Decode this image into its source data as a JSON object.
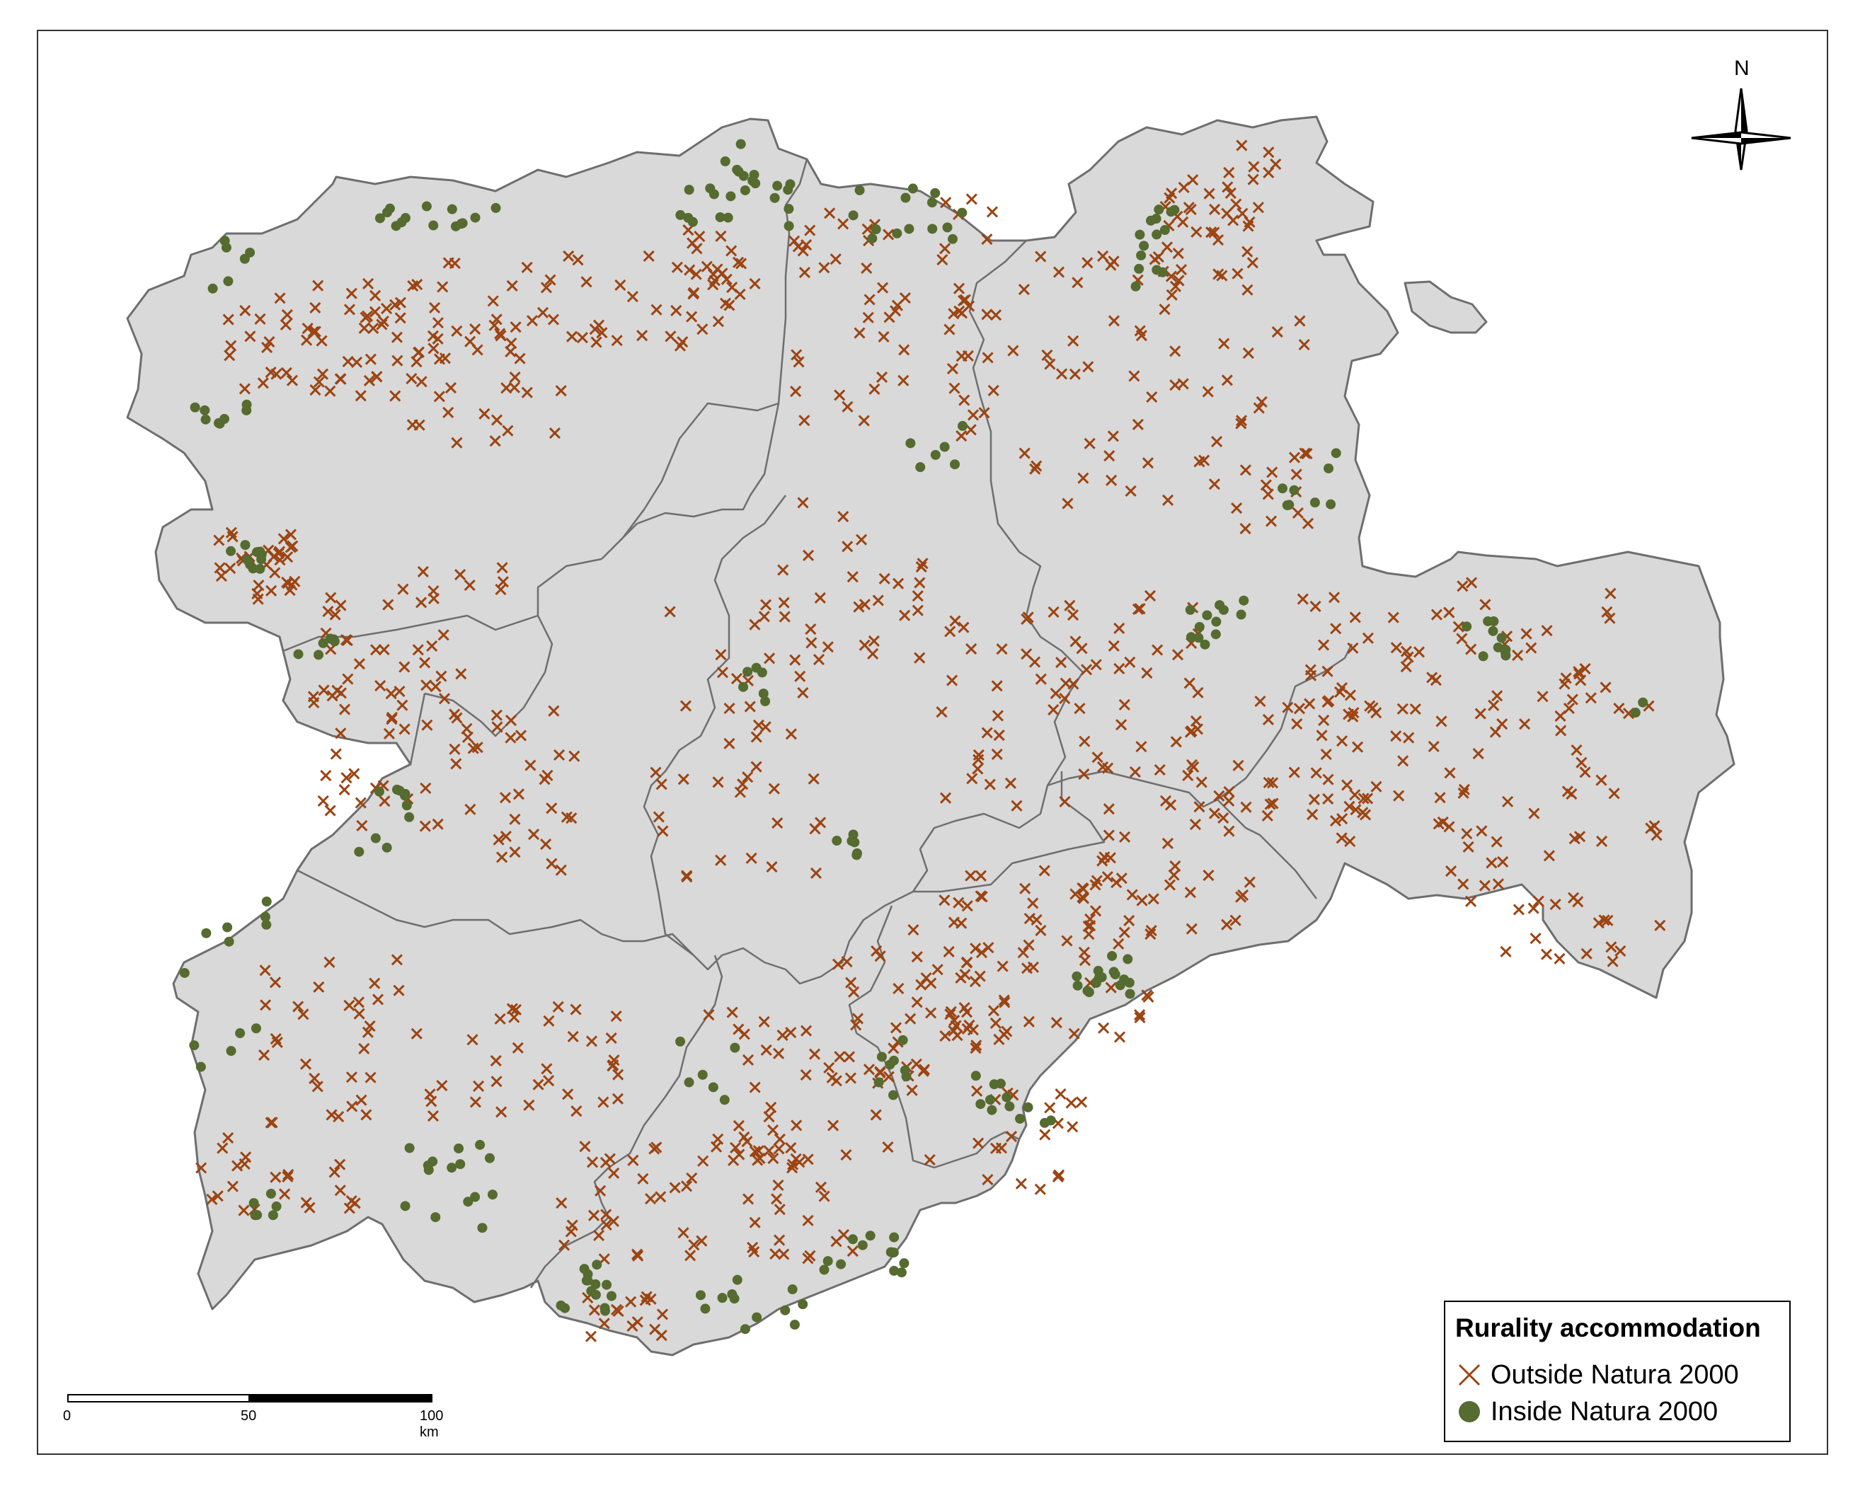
{
  "legend": {
    "title": "Rurality accommodation",
    "items": [
      {
        "label": "Outside Natura 2000",
        "symbol": "cross",
        "color": "#9c4412"
      },
      {
        "label": "Inside Natura 2000",
        "symbol": "dot",
        "color": "#556b2f"
      }
    ]
  },
  "scale_bar": {
    "labels": [
      "0",
      "50",
      "100 km"
    ]
  },
  "north_arrow": {
    "label": "N"
  },
  "colors": {
    "region_fill": "#d9d9d9",
    "region_border": "#6e6e6e",
    "outside_marker": "#9c4412",
    "inside_marker": "#556b2f"
  }
}
